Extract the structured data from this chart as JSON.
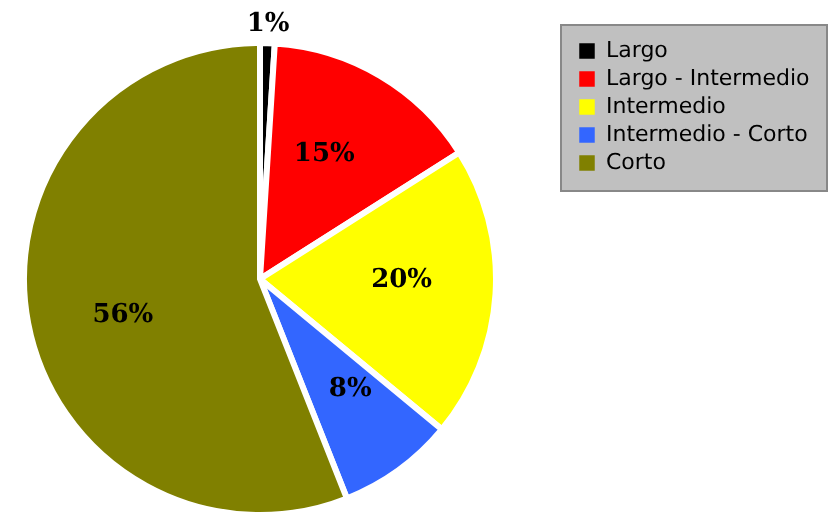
{
  "chart_data": {
    "type": "pie",
    "categories": [
      "Largo",
      "Largo - Intermedio",
      "Intermedio",
      "Intermedio - Corto",
      "Corto"
    ],
    "values": [
      1,
      15,
      20,
      8,
      56
    ],
    "colors": [
      "#000000",
      "#ff0000",
      "#ffff00",
      "#3366ff",
      "#808000"
    ],
    "value_labels": [
      "1%",
      "15%",
      "20%",
      "8%",
      "56%"
    ],
    "legend": "right"
  }
}
